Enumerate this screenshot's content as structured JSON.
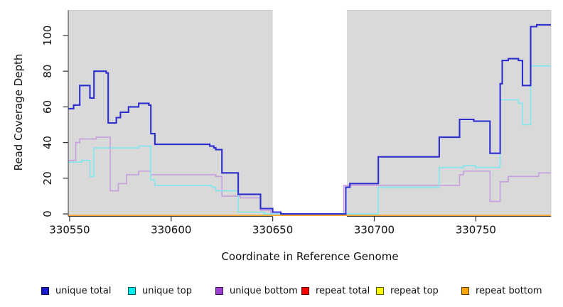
{
  "y_axis": {
    "label": "Read Coverage Depth",
    "tick_values": [
      0,
      20,
      40,
      60,
      80,
      100
    ]
  },
  "x_axis": {
    "label": "Coordinate in Reference Genome",
    "tick_values": [
      330550,
      330600,
      330650,
      330700,
      330750
    ]
  },
  "legend": [
    {
      "label": "unique total",
      "color": "#1A1ACB"
    },
    {
      "label": "unique top",
      "color": "#00EEF0"
    },
    {
      "label": "unique bottom",
      "color": "#9C3FD0"
    },
    {
      "label": "repeat total",
      "color": "#FF0000"
    },
    {
      "label": "repeat top",
      "color": "#FFFF00"
    },
    {
      "label": "repeat bottom",
      "color": "#FFA500"
    }
  ],
  "chart_data": {
    "type": "line",
    "step": true,
    "title": "",
    "xlabel": "Coordinate in Reference Genome",
    "ylabel": "Read Coverage Depth",
    "xlim": [
      330549,
      330787
    ],
    "ylim": [
      0,
      114
    ],
    "grid": false,
    "plot_background": "#D9D9D9",
    "no_data_region": {
      "x_start": 330650,
      "x_end": 330686,
      "color": "#FFFFFF"
    },
    "series": [
      {
        "name": "repeat total",
        "line_color": "#E01010",
        "points": [
          [
            330549,
            0
          ],
          [
            330787,
            0
          ]
        ]
      },
      {
        "name": "repeat top",
        "line_color": "#F0F000",
        "points": [
          [
            330549,
            0
          ],
          [
            330787,
            0
          ]
        ]
      },
      {
        "name": "repeat bottom",
        "line_color": "#FFA435",
        "points": [
          [
            330549,
            0
          ],
          [
            330787,
            0
          ]
        ]
      },
      {
        "name": "unique bottom",
        "line_color": "#C79EDF",
        "points": [
          [
            330549,
            30
          ],
          [
            330553,
            40
          ],
          [
            330555,
            42
          ],
          [
            330563,
            43
          ],
          [
            330570,
            13
          ],
          [
            330574,
            17
          ],
          [
            330578,
            22
          ],
          [
            330584,
            24
          ],
          [
            330590,
            22
          ],
          [
            330622,
            21
          ],
          [
            330625,
            10
          ],
          [
            330634,
            9
          ],
          [
            330644,
            2
          ],
          [
            330649,
            0
          ],
          [
            330685,
            16
          ],
          [
            330742,
            22
          ],
          [
            330744,
            24
          ],
          [
            330757,
            7
          ],
          [
            330762,
            18
          ],
          [
            330766,
            21
          ],
          [
            330781,
            23
          ],
          [
            330787,
            23
          ]
        ]
      },
      {
        "name": "unique top",
        "line_color": "#7FE8EF",
        "points": [
          [
            330549,
            29
          ],
          [
            330556,
            30
          ],
          [
            330560,
            21
          ],
          [
            330562,
            37
          ],
          [
            330584,
            38
          ],
          [
            330590,
            19
          ],
          [
            330592,
            16
          ],
          [
            330620,
            15
          ],
          [
            330622,
            13
          ],
          [
            330633,
            1
          ],
          [
            330646,
            0
          ],
          [
            330702,
            15
          ],
          [
            330732,
            26
          ],
          [
            330744,
            27
          ],
          [
            330750,
            26
          ],
          [
            330762,
            64
          ],
          [
            330771,
            62
          ],
          [
            330773,
            50
          ],
          [
            330777,
            83
          ],
          [
            330787,
            83
          ]
        ]
      },
      {
        "name": "unique total",
        "line_color": "#2E2ED0",
        "points": [
          [
            330549,
            59
          ],
          [
            330552,
            61
          ],
          [
            330555,
            72
          ],
          [
            330560,
            65
          ],
          [
            330562,
            80
          ],
          [
            330568,
            79
          ],
          [
            330569,
            51
          ],
          [
            330573,
            54
          ],
          [
            330575,
            57
          ],
          [
            330579,
            60
          ],
          [
            330584,
            62
          ],
          [
            330589,
            61
          ],
          [
            330590,
            45
          ],
          [
            330592,
            39
          ],
          [
            330619,
            38
          ],
          [
            330621,
            37
          ],
          [
            330622,
            36
          ],
          [
            330625,
            23
          ],
          [
            330633,
            11
          ],
          [
            330644,
            3
          ],
          [
            330650,
            1
          ],
          [
            330654,
            0
          ],
          [
            330686,
            15
          ],
          [
            330688,
            17
          ],
          [
            330702,
            32
          ],
          [
            330732,
            43
          ],
          [
            330742,
            53
          ],
          [
            330749,
            52
          ],
          [
            330757,
            34
          ],
          [
            330762,
            73
          ],
          [
            330763,
            86
          ],
          [
            330766,
            87
          ],
          [
            330771,
            86
          ],
          [
            330773,
            72
          ],
          [
            330777,
            105
          ],
          [
            330780,
            106
          ],
          [
            330787,
            106
          ]
        ]
      }
    ]
  }
}
